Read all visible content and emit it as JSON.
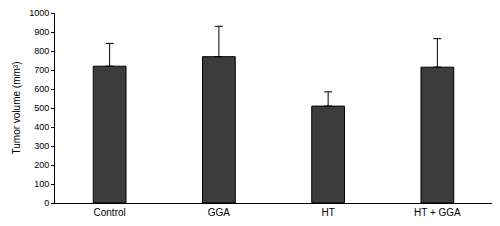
{
  "chart_data": {
    "type": "bar",
    "categories": [
      "Control",
      "GGA",
      "HT",
      "HT + GGA"
    ],
    "values": [
      720,
      770,
      510,
      715
    ],
    "errors": [
      120,
      160,
      75,
      150
    ],
    "color": "#3c3c3c",
    "ylabel": "Tumor volume (mm³)",
    "ylim": [
      0,
      1000
    ],
    "yticks": [
      0,
      100,
      200,
      300,
      400,
      500,
      600,
      700,
      800,
      900,
      1000
    ],
    "grid": false
  }
}
